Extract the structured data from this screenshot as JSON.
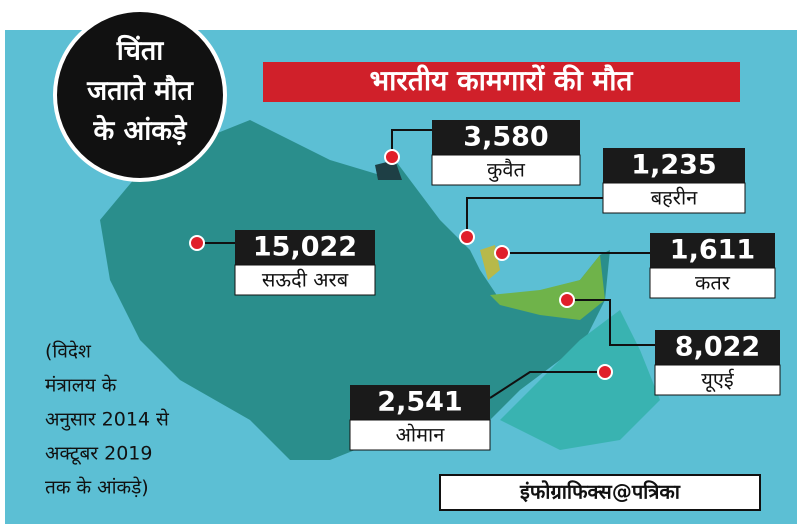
{
  "badge": {
    "lines": [
      "चिंता",
      "जताते मौत",
      "के आंकड़े"
    ]
  },
  "title": "भारतीय कामगारों की मौत",
  "countries": [
    {
      "name": "कुवैत",
      "value": "3,580"
    },
    {
      "name": "बहरीन",
      "value": "1,235"
    },
    {
      "name": "सऊदी अरब",
      "value": "15,022"
    },
    {
      "name": "कतर",
      "value": "1,611"
    },
    {
      "name": "यूएई",
      "value": "8,022"
    },
    {
      "name": "ओमान",
      "value": "2,541"
    }
  ],
  "note": {
    "lines": [
      "(विदेश",
      "मंत्रालय के",
      "अनुसार 2014 से",
      "अक्टूबर 2019",
      "तक के आंकड़े)"
    ]
  },
  "credit": "इंफोग्राफिक्स@पत्रिका"
}
